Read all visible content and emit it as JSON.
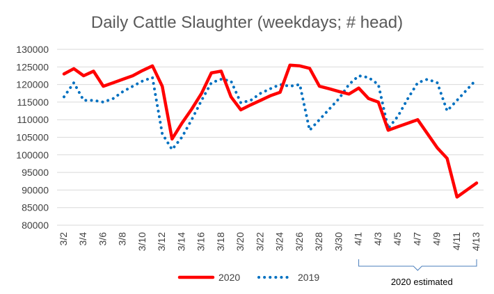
{
  "chart_data": {
    "type": "line",
    "title": "Daily Cattle Slaughter (weekdays; # head)",
    "xlabel": "",
    "ylabel": "",
    "ylim": [
      80000,
      130000
    ],
    "ytick_step": 5000,
    "grid": true,
    "legend_position": "bottom",
    "categories": [
      "3/2",
      "3/3",
      "3/4",
      "3/5",
      "3/6",
      "3/7",
      "3/8",
      "3/9",
      "3/10",
      "3/11",
      "3/12",
      "3/13",
      "3/14",
      "3/15",
      "3/16",
      "3/17",
      "3/18",
      "3/19",
      "3/20",
      "3/21",
      "3/22",
      "3/23",
      "3/24",
      "3/25",
      "3/26",
      "3/27",
      "3/28",
      "3/29",
      "3/30",
      "3/31",
      "4/1",
      "4/2",
      "4/3",
      "4/4",
      "4/5",
      "4/6",
      "4/7",
      "4/8",
      "4/9",
      "4/10",
      "4/11",
      "4/12",
      "4/13"
    ],
    "tick_labels": [
      "3/2",
      "3/4",
      "3/6",
      "3/8",
      "3/10",
      "3/12",
      "3/14",
      "3/16",
      "3/18",
      "3/20",
      "3/22",
      "3/24",
      "3/26",
      "3/28",
      "3/30",
      "4/1",
      "4/3",
      "4/5",
      "4/7",
      "4/9",
      "4/11",
      "4/13"
    ],
    "series": [
      {
        "name": "2020",
        "color": "#ff0000",
        "style": "solid",
        "values": [
          123000,
          124500,
          122500,
          123800,
          119500,
          120500,
          121500,
          122500,
          124000,
          125300,
          119500,
          104500,
          109000,
          113000,
          117500,
          123300,
          123800,
          116500,
          112800,
          114200,
          115500,
          116800,
          117800,
          125500,
          125300,
          124600,
          119500,
          118800,
          118000,
          117300,
          119000,
          116000,
          115000,
          107000,
          108000,
          109000,
          110000,
          106000,
          102000,
          99000,
          88000,
          90000,
          92000
        ]
      },
      {
        "name": "2019",
        "color": "#0070c0",
        "style": "dotted",
        "values": [
          116500,
          120500,
          115500,
          115500,
          115000,
          116000,
          118000,
          119500,
          121000,
          122000,
          106000,
          101500,
          105000,
          110000,
          115500,
          120500,
          121500,
          121000,
          114800,
          115500,
          117500,
          118800,
          120000,
          119500,
          120000,
          107000,
          110000,
          113000,
          116000,
          120000,
          122500,
          122000,
          120000,
          107500,
          111000,
          116000,
          120500,
          121500,
          120500,
          112500,
          115500,
          118500,
          121500
        ]
      }
    ],
    "annotations": [
      {
        "text": "2020 estimated",
        "from": "4/1",
        "to": "4/13"
      }
    ]
  }
}
